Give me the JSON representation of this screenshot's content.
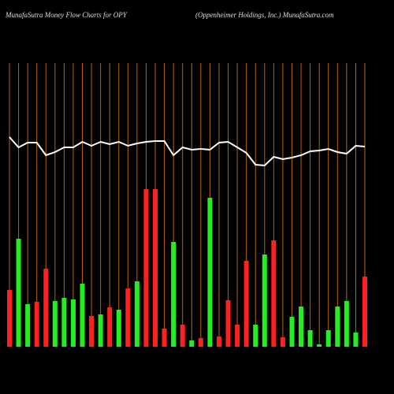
{
  "chart_data": {
    "type": "bar",
    "title": "MunafaSutra  Money Flow  Charts for OPY",
    "subtitle": "(Oppenheimer Holdings, Inc.) MunafaSutra.com",
    "categories": [
      null,
      null,
      null,
      null,
      null,
      null,
      null,
      null,
      null,
      null,
      null,
      null,
      null,
      null,
      null,
      null,
      null,
      null,
      null,
      null,
      null,
      null,
      null,
      null,
      null,
      null,
      null,
      null,
      null,
      null,
      null,
      null,
      null,
      null,
      null,
      null,
      null,
      null,
      null,
      null
    ],
    "series": [
      {
        "name": "money flow",
        "values": [
          72,
          137,
          54,
          57,
          99,
          58,
          62,
          60,
          80,
          39,
          41,
          50,
          47,
          74,
          83,
          200,
          200,
          23,
          133,
          28,
          8,
          11,
          189,
          13,
          59,
          28,
          109,
          28,
          117,
          135,
          12,
          38,
          51,
          21,
          3,
          21,
          51,
          58,
          18,
          89
        ],
        "colors": [
          "#ff2020",
          "#22ee22",
          "#22ee22",
          "#ff2020",
          "#ff2020",
          "#22ee22",
          "#22ee22",
          "#22ee22",
          "#22ee22",
          "#ff2020",
          "#22ee22",
          "#ff2020",
          "#22ee22",
          "#ff2020",
          "#22ee22",
          "#ff2020",
          "#ff2020",
          "#ff2020",
          "#22ee22",
          "#ff2020",
          "#22ee22",
          "#ff2020",
          "#22ee22",
          "#ff2020",
          "#ff2020",
          "#ff2020",
          "#ff2020",
          "#22ee22",
          "#22ee22",
          "#ff2020",
          "#ff2020",
          "#22ee22",
          "#22ee22",
          "#22ee22",
          "#22ee22",
          "#22ee22",
          "#22ee22",
          "#22ee22",
          "#22ee22",
          "#ff2020"
        ]
      },
      {
        "name": "trend",
        "type": "line",
        "color": "#ffffff",
        "values": [
          266,
          253,
          259,
          259,
          243,
          247,
          253,
          253,
          260,
          255,
          260,
          257,
          260,
          255,
          258,
          260,
          261,
          261,
          243,
          253,
          250,
          251,
          250,
          259,
          260,
          253,
          246,
          231,
          230,
          241,
          238,
          240,
          243,
          248,
          249,
          251,
          247,
          245,
          255,
          254
        ]
      }
    ],
    "ylim": [
      0,
      200
    ],
    "grid_color": "#b8650f"
  }
}
